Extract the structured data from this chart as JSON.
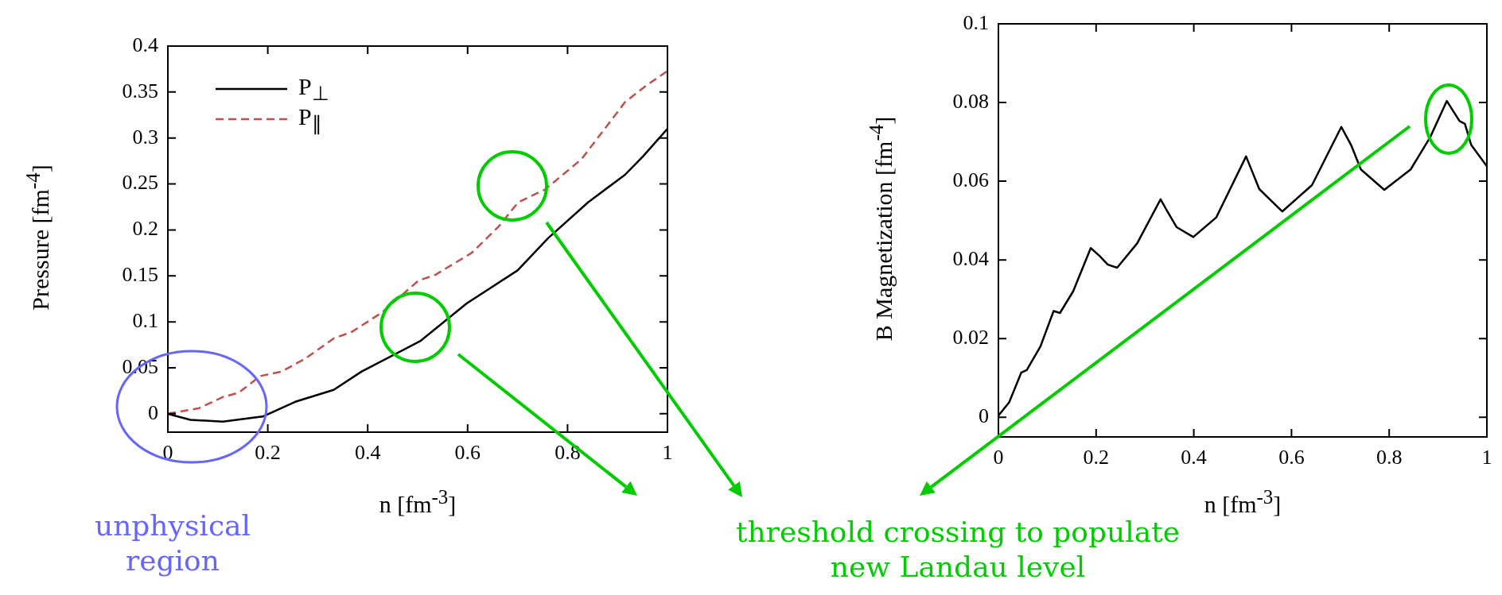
{
  "chart_data": [
    {
      "type": "line",
      "xlabel": "n [fm$^{-3}$]",
      "ylabel": "Pressure [fm$^{-4}$]",
      "xlim": [
        0,
        1
      ],
      "ylim": [
        -0.02,
        0.4
      ],
      "xticks": [
        0,
        0.2,
        0.4,
        0.6,
        0.8,
        1
      ],
      "yticks": [
        0,
        0.05,
        0.1,
        0.15,
        0.2,
        0.25,
        0.3,
        0.35,
        0.4
      ],
      "grid": false,
      "legend": "top left",
      "annotations": [
        "unphysical region"
      ],
      "series": [
        {
          "name": "P$_{⊥}$",
          "color": "#000000",
          "line_style": "solid",
          "x": [
            0,
            0.045,
            0.11,
            0.19,
            0.255,
            0.332,
            0.388,
            0.505,
            0.598,
            0.7,
            0.761,
            0.841,
            0.915,
            0.951,
            1
          ],
          "values": [
            0,
            -0.0066,
            -0.0086,
            -0.003,
            0.013,
            0.026,
            0.046,
            0.079,
            0.12,
            0.156,
            0.191,
            0.23,
            0.26,
            0.28,
            0.31
          ]
        },
        {
          "name": "P$_{∥}$",
          "color": "#c0504d",
          "line_style": "dashed",
          "x": [
            0,
            0.062,
            0.109,
            0.142,
            0.185,
            0.228,
            0.275,
            0.332,
            0.368,
            0.428,
            0.502,
            0.535,
            0.608,
            0.661,
            0.701,
            0.755,
            0.828,
            0.915,
            0.955,
            1
          ],
          "values": [
            0,
            0.006,
            0.018,
            0.023,
            0.041,
            0.046,
            0.06,
            0.082,
            0.089,
            0.11,
            0.145,
            0.151,
            0.175,
            0.203,
            0.23,
            0.244,
            0.277,
            0.339,
            0.356,
            0.373
          ]
        }
      ]
    },
    {
      "type": "line",
      "xlabel": "n [fm$^{-3}$]",
      "ylabel": "B Magnetization [fm$^{-4}$]",
      "xlim": [
        0,
        1
      ],
      "ylim": [
        -0.005,
        0.1
      ],
      "xticks": [
        0,
        0.2,
        0.4,
        0.6,
        0.8,
        1
      ],
      "yticks": [
        0,
        0.02,
        0.04,
        0.06,
        0.08,
        0.1
      ],
      "grid": false,
      "annotations": [
        "threshold crossing to populate new Landau level"
      ],
      "series": [
        {
          "color": "#000000",
          "line_style": "solid",
          "x": [
            0,
            0.022,
            0.047,
            0.058,
            0.086,
            0.113,
            0.126,
            0.153,
            0.189,
            0.207,
            0.224,
            0.243,
            0.284,
            0.332,
            0.345,
            0.365,
            0.399,
            0.446,
            0.507,
            0.534,
            0.581,
            0.642,
            0.702,
            0.722,
            0.742,
            0.79,
            0.844,
            0.884,
            0.918,
            0.944,
            0.955,
            0.968,
            1
          ],
          "values": [
            0.0004,
            0.0038,
            0.0114,
            0.012,
            0.018,
            0.027,
            0.0265,
            0.032,
            0.043,
            0.041,
            0.0388,
            0.038,
            0.0442,
            0.0554,
            0.0525,
            0.0483,
            0.0458,
            0.0508,
            0.0663,
            0.058,
            0.0523,
            0.059,
            0.0738,
            0.0692,
            0.063,
            0.0578,
            0.063,
            0.0712,
            0.0804,
            0.0753,
            0.0746,
            0.0692,
            0.0638
          ]
        }
      ]
    }
  ]
}
